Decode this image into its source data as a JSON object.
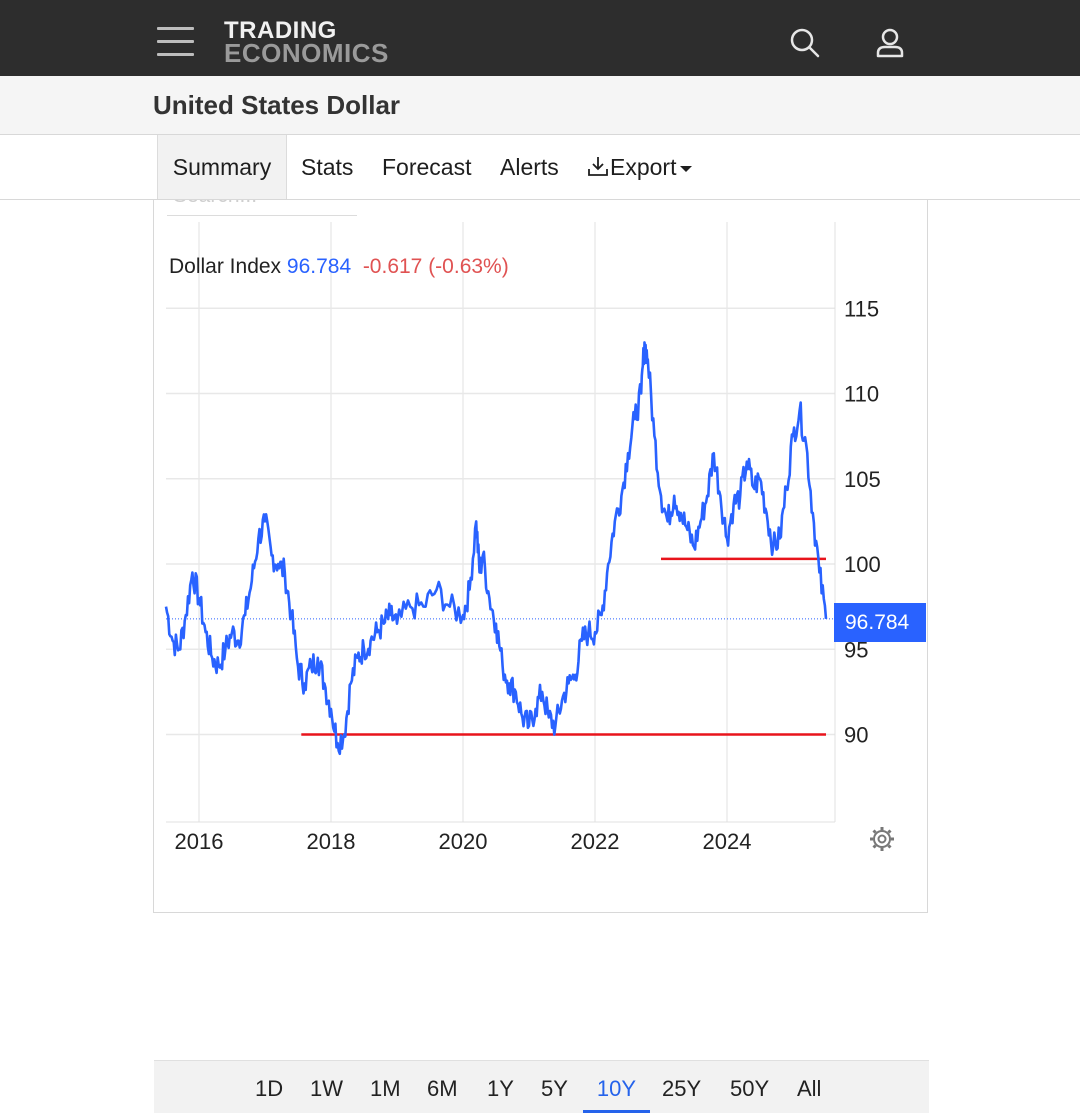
{
  "header": {
    "logo_line1": "TRADING",
    "logo_line2": "ECONOMICS",
    "icons": [
      "menu-icon",
      "search-icon",
      "user-icon"
    ]
  },
  "page": {
    "title": "United States Dollar"
  },
  "tabs": [
    {
      "label": "Summary",
      "active": true
    },
    {
      "label": "Stats"
    },
    {
      "label": "Forecast"
    },
    {
      "label": "Alerts"
    },
    {
      "label": "Export",
      "icon": "download-icon",
      "dropdown": true
    }
  ],
  "toolbar": {
    "search_placeholder": "Search..."
  },
  "legend": {
    "name": "Dollar Index",
    "value": "96.784",
    "change": "-0.617 (-0.63%)"
  },
  "price_tag": "96.784",
  "ranges": [
    "1D",
    "1W",
    "1M",
    "6M",
    "1Y",
    "5Y",
    "10Y",
    "25Y",
    "50Y",
    "All"
  ],
  "active_range": "10Y",
  "colors": {
    "line": "#2962ff",
    "support": "#e8141c",
    "change": "#e05252",
    "value": "#2962ff",
    "header": "#2d2d2d"
  },
  "chart_data": {
    "type": "line",
    "series": [
      {
        "name": "Dollar Index",
        "x": [
          2015.5,
          2015.6,
          2015.7,
          2015.8,
          2015.9,
          2016.0,
          2016.1,
          2016.2,
          2016.3,
          2016.4,
          2016.5,
          2016.6,
          2016.7,
          2016.8,
          2016.9,
          2017.0,
          2017.1,
          2017.2,
          2017.3,
          2017.4,
          2017.5,
          2017.6,
          2017.7,
          2017.8,
          2017.9,
          2018.0,
          2018.1,
          2018.2,
          2018.3,
          2018.4,
          2018.5,
          2018.6,
          2018.7,
          2018.8,
          2018.9,
          2019.0,
          2019.2,
          2019.4,
          2019.6,
          2019.8,
          2020.0,
          2020.1,
          2020.2,
          2020.25,
          2020.3,
          2020.4,
          2020.5,
          2020.6,
          2020.7,
          2020.8,
          2020.9,
          2021.0,
          2021.1,
          2021.2,
          2021.3,
          2021.4,
          2021.5,
          2021.6,
          2021.7,
          2021.8,
          2021.9,
          2022.0,
          2022.1,
          2022.2,
          2022.3,
          2022.4,
          2022.5,
          2022.6,
          2022.7,
          2022.75,
          2022.8,
          2022.9,
          2023.0,
          2023.1,
          2023.2,
          2023.3,
          2023.4,
          2023.5,
          2023.6,
          2023.7,
          2023.8,
          2023.9,
          2024.0,
          2024.1,
          2024.2,
          2024.3,
          2024.4,
          2024.5,
          2024.6,
          2024.7,
          2024.8,
          2024.9,
          2025.0,
          2025.1,
          2025.2,
          2025.3,
          2025.4,
          2025.5
        ],
        "y": [
          97.5,
          95.5,
          95.0,
          97.0,
          99.5,
          98.0,
          96.0,
          94.5,
          94.0,
          95.0,
          96.0,
          95.5,
          97.0,
          99.0,
          101.5,
          102.5,
          100.5,
          100.0,
          99.5,
          97.0,
          94.0,
          93.0,
          94.0,
          94.5,
          93.0,
          91.5,
          89.5,
          90.0,
          93.0,
          94.5,
          95.0,
          95.5,
          96.0,
          96.5,
          97.0,
          96.5,
          97.5,
          97.5,
          98.5,
          97.5,
          97.0,
          98.5,
          102.5,
          99.5,
          100.5,
          98.0,
          96.5,
          94.0,
          93.0,
          92.5,
          91.0,
          90.5,
          91.5,
          92.5,
          91.0,
          90.5,
          92.0,
          93.0,
          93.5,
          95.5,
          96.0,
          96.0,
          97.0,
          100.0,
          102.5,
          104.0,
          106.5,
          108.5,
          110.0,
          113.0,
          112.0,
          107.5,
          104.0,
          102.5,
          104.0,
          103.0,
          102.0,
          101.0,
          102.5,
          104.0,
          106.5,
          104.0,
          101.5,
          103.5,
          104.0,
          106.0,
          104.5,
          105.0,
          103.0,
          101.0,
          101.5,
          104.5,
          107.5,
          109.0,
          107.0,
          103.0,
          99.5,
          96.78
        ]
      }
    ],
    "support_lines": [
      {
        "y": 90.0,
        "x_start": 2017.55,
        "x_end": 2025.5
      },
      {
        "y": 100.3,
        "x_start": 2023.0,
        "x_end": 2025.5
      }
    ],
    "last_value": 96.784,
    "x_ticks": [
      "2016",
      "2018",
      "2020",
      "2022",
      "2024"
    ],
    "y_ticks": [
      "115",
      "110",
      "105",
      "100",
      "95",
      "90"
    ],
    "xlim": [
      2015.5,
      2025.6
    ],
    "ylim": [
      84,
      120
    ],
    "grid": true
  }
}
